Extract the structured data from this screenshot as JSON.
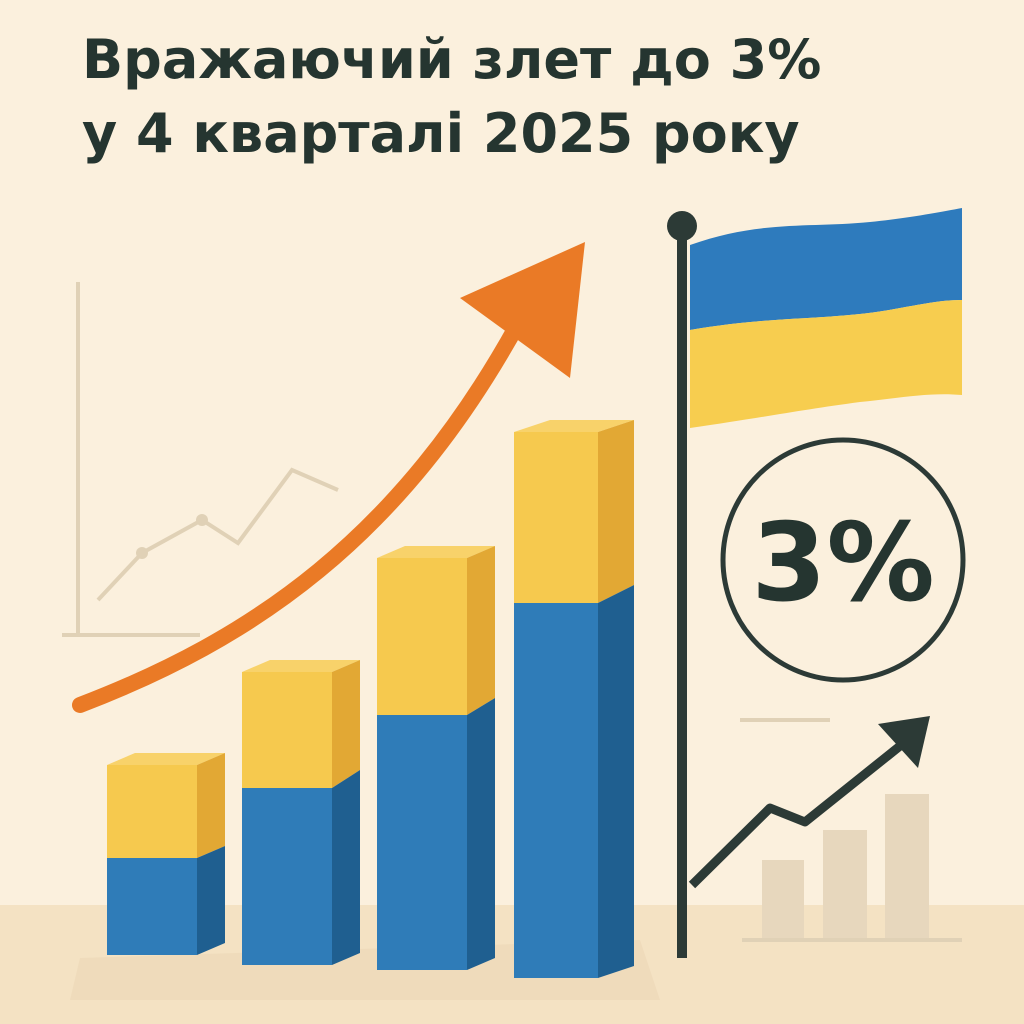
{
  "header": {
    "title_lines": [
      "Вражаючий злет до 3%",
      "у 4 кварталі 2025 року"
    ]
  },
  "badge": {
    "text": "3%"
  }
}
